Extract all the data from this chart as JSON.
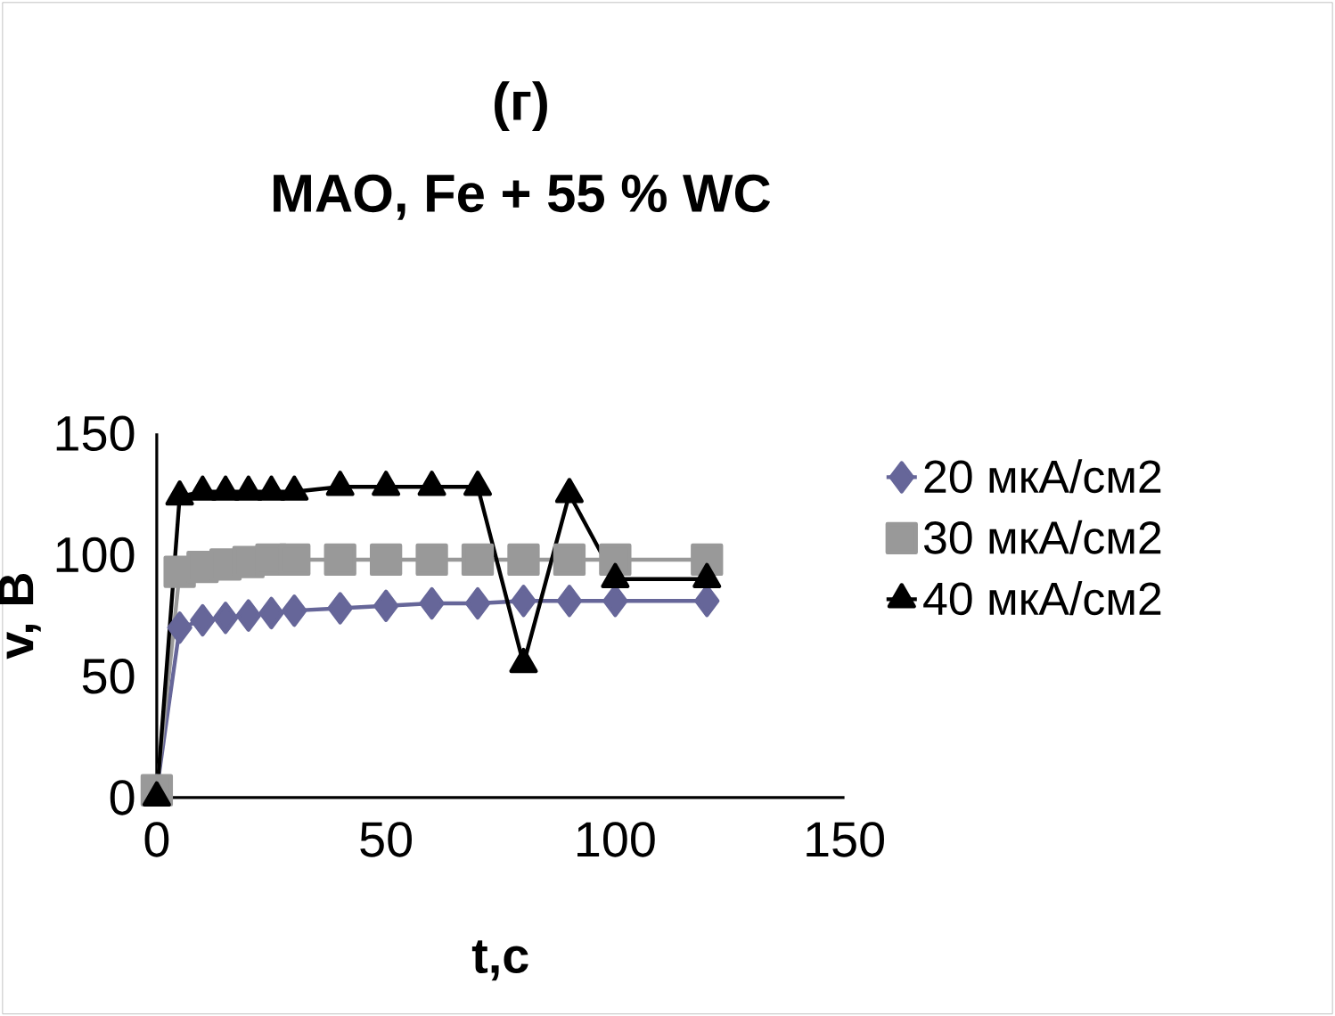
{
  "chart_data": {
    "type": "line",
    "title": "(г)",
    "subtitle": "МАО, Fe + 55 % WC",
    "xlabel": "t,c",
    "ylabel": "v,  В",
    "xlim": [
      0,
      150
    ],
    "ylim": [
      0,
      150
    ],
    "xticks": [
      0,
      50,
      100,
      150
    ],
    "yticks": [
      0,
      50,
      100,
      150
    ],
    "grid": false,
    "legend": "right",
    "x": [
      0,
      5,
      10,
      15,
      20,
      25,
      30,
      40,
      50,
      60,
      70,
      80,
      90,
      100,
      120
    ],
    "series": [
      {
        "name": "20 мкА/см2",
        "color": "#666699",
        "marker": "diamond",
        "values": [
          3,
          70,
          73,
          74,
          75,
          76,
          77,
          78,
          79,
          80,
          80,
          81,
          81,
          81,
          81
        ]
      },
      {
        "name": "30 мкА/см2",
        "color": "#999999",
        "marker": "square",
        "values": [
          3,
          93,
          95,
          96,
          97,
          98,
          98,
          98,
          98,
          98,
          98,
          98,
          98,
          98,
          98
        ]
      },
      {
        "name": "40 мкА/см2",
        "color": "#000000",
        "marker": "triangle",
        "values": [
          0,
          124,
          126,
          126,
          126,
          126,
          126,
          128,
          128,
          128,
          128,
          55,
          125,
          90,
          90
        ]
      }
    ]
  }
}
